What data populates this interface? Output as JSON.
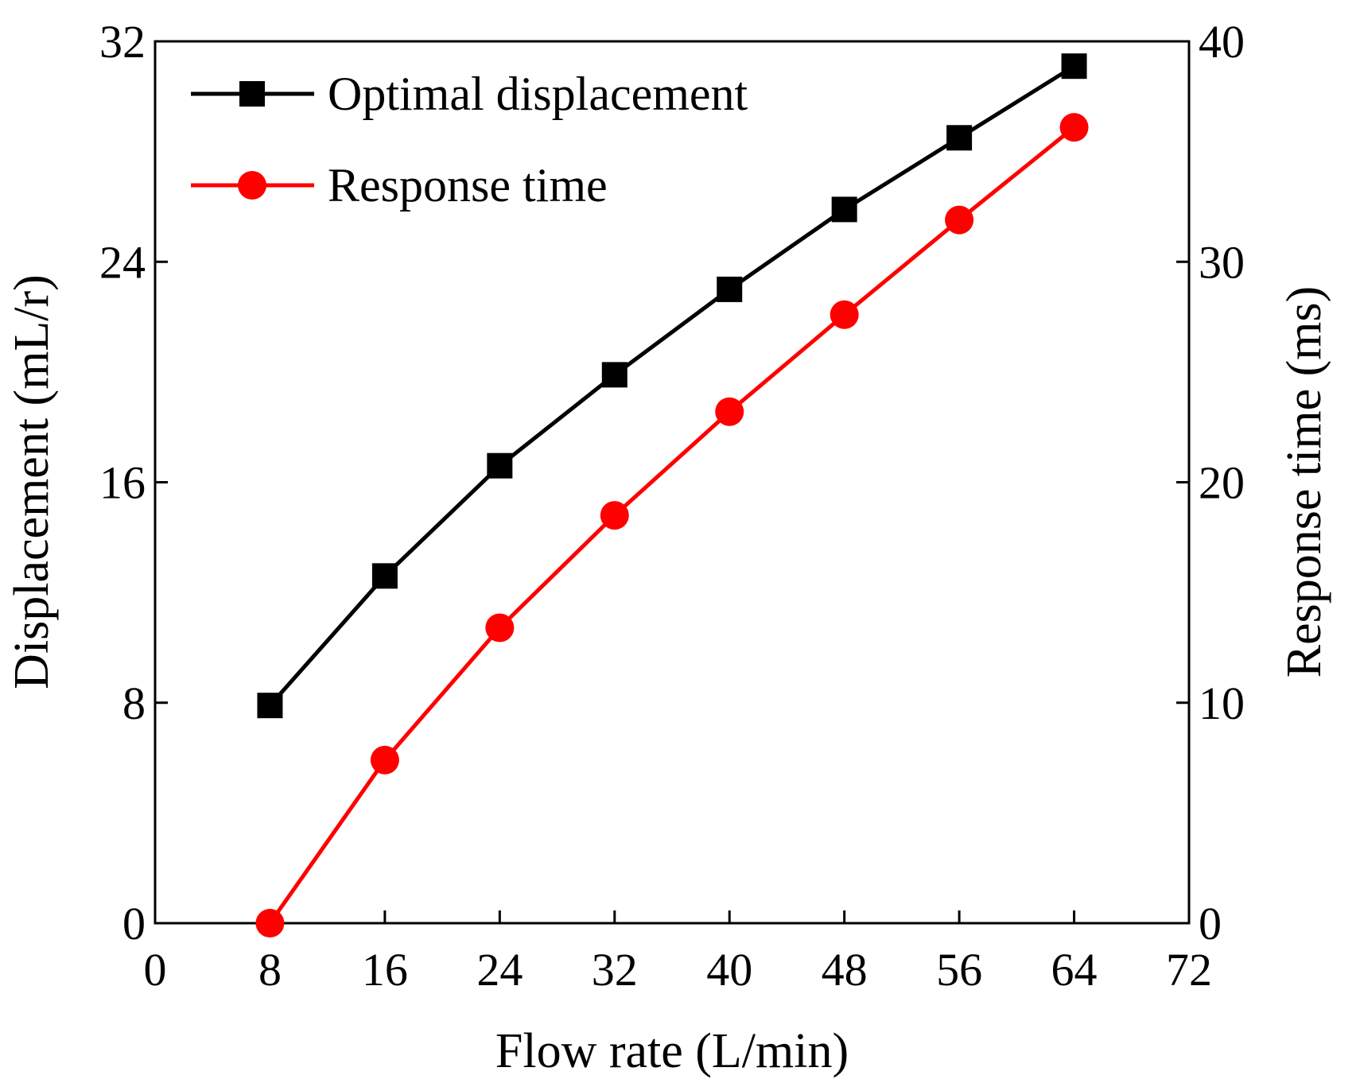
{
  "chart_data": {
    "type": "line",
    "xlabel": "Flow rate (L/min)",
    "ylabel_left": "Displacement (mL/r)",
    "ylabel_right": "Response time (ms)",
    "xlim": [
      0,
      72
    ],
    "ylim_left": [
      0,
      32
    ],
    "ylim_right": [
      0,
      40
    ],
    "xticks": [
      0,
      8,
      16,
      24,
      32,
      40,
      48,
      56,
      64,
      72
    ],
    "yticks_left": [
      0,
      8,
      16,
      24,
      32
    ],
    "yticks_right": [
      0,
      10,
      20,
      30,
      40
    ],
    "grid": false,
    "legend_position": "top-left",
    "series": [
      {
        "name": "Optimal displacement",
        "axis": "left",
        "color": "#000000",
        "marker": "square",
        "x": [
          8,
          16,
          24,
          32,
          40,
          48,
          56,
          64
        ],
        "values": [
          7.9,
          12.6,
          16.6,
          19.9,
          23.0,
          25.9,
          28.5,
          31.1
        ]
      },
      {
        "name": "Response time",
        "axis": "right",
        "color": "#ff0000",
        "marker": "circle",
        "x": [
          8,
          16,
          24,
          32,
          40,
          48,
          56,
          64
        ],
        "values": [
          0.0,
          7.4,
          13.4,
          18.5,
          23.2,
          27.6,
          31.9,
          36.1
        ]
      }
    ]
  }
}
